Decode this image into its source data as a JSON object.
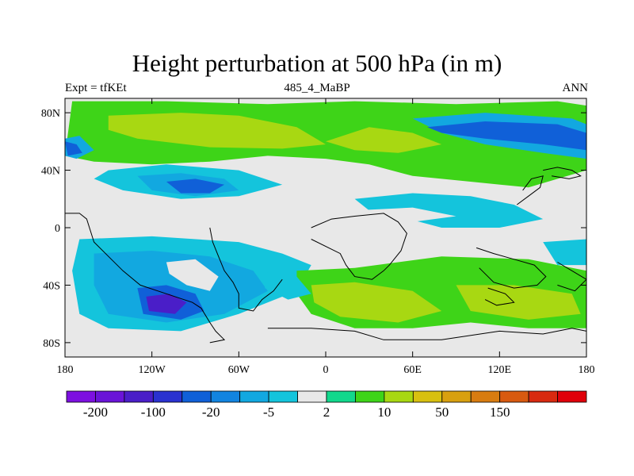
{
  "title": "Height perturbation at 500 hPa (in m)",
  "subtitle_left": "Expt = tfKEt",
  "subtitle_center": "485_4_MaBP",
  "subtitle_right": "ANN",
  "x_ticks": [
    {
      "value": -180,
      "label": "180"
    },
    {
      "value": -120,
      "label": "120W"
    },
    {
      "value": -60,
      "label": "60W"
    },
    {
      "value": 0,
      "label": "0"
    },
    {
      "value": 60,
      "label": "60E"
    },
    {
      "value": 120,
      "label": "120E"
    },
    {
      "value": 180,
      "label": "180"
    }
  ],
  "y_ticks": [
    {
      "value": 80,
      "label": "80N"
    },
    {
      "value": 40,
      "label": "40N"
    },
    {
      "value": 0,
      "label": "0"
    },
    {
      "value": -40,
      "label": "40S"
    },
    {
      "value": -80,
      "label": "80S"
    }
  ],
  "axis_range": {
    "lon": [
      -180,
      180
    ],
    "lat": [
      -90,
      90
    ]
  },
  "colorbar": {
    "colors": [
      "#7d10e0",
      "#6a14d8",
      "#4a1ec8",
      "#2a32d0",
      "#1060d8",
      "#1284e0",
      "#12a8e0",
      "#14c4dc",
      "#e8e8e8",
      "#12d88c",
      "#3ed418",
      "#a8d812",
      "#d8c010",
      "#d8a010",
      "#d87c10",
      "#d85a10",
      "#d82a10",
      "#e0000a"
    ],
    "labels": [
      "-200",
      "-100",
      "-20",
      "-5",
      "2",
      "10",
      "50",
      "150"
    ]
  },
  "field_regions": [
    {
      "level": "pos_low",
      "points": [
        [
          -175,
          88
        ],
        [
          -110,
          88
        ],
        [
          -40,
          86
        ],
        [
          20,
          88
        ],
        [
          90,
          86
        ],
        [
          160,
          88
        ],
        [
          180,
          85
        ],
        [
          180,
          40
        ],
        [
          140,
          28
        ],
        [
          100,
          32
        ],
        [
          60,
          36
        ],
        [
          30,
          44
        ],
        [
          0,
          48
        ],
        [
          -40,
          50
        ],
        [
          -80,
          46
        ],
        [
          -120,
          44
        ],
        [
          -160,
          46
        ],
        [
          -180,
          50
        ]
      ]
    },
    {
      "level": "pos_mid",
      "points": [
        [
          -150,
          78
        ],
        [
          -100,
          80
        ],
        [
          -60,
          78
        ],
        [
          -20,
          70
        ],
        [
          0,
          58
        ],
        [
          -30,
          55
        ],
        [
          -80,
          56
        ],
        [
          -130,
          62
        ],
        [
          -150,
          68
        ]
      ]
    },
    {
      "level": "pos_mid",
      "points": [
        [
          0,
          60
        ],
        [
          30,
          70
        ],
        [
          60,
          66
        ],
        [
          80,
          58
        ],
        [
          50,
          52
        ],
        [
          20,
          54
        ]
      ]
    },
    {
      "level": "neg_mid",
      "points": [
        [
          -180,
          62
        ],
        [
          -170,
          64
        ],
        [
          -160,
          54
        ],
        [
          -172,
          48
        ],
        [
          -180,
          50
        ]
      ]
    },
    {
      "level": "neg_high",
      "points": [
        [
          -180,
          60
        ],
        [
          -172,
          58
        ],
        [
          -168,
          52
        ],
        [
          -178,
          50
        ]
      ]
    },
    {
      "level": "neg_mid",
      "points": [
        [
          60,
          76
        ],
        [
          110,
          80
        ],
        [
          170,
          76
        ],
        [
          180,
          72
        ],
        [
          180,
          48
        ],
        [
          150,
          52
        ],
        [
          110,
          58
        ],
        [
          80,
          66
        ]
      ]
    },
    {
      "level": "neg_high",
      "points": [
        [
          70,
          70
        ],
        [
          110,
          74
        ],
        [
          160,
          72
        ],
        [
          180,
          66
        ],
        [
          180,
          54
        ],
        [
          150,
          58
        ],
        [
          110,
          62
        ],
        [
          80,
          66
        ]
      ]
    },
    {
      "level": "neg_low",
      "points": [
        [
          -150,
          40
        ],
        [
          -110,
          44
        ],
        [
          -60,
          40
        ],
        [
          -30,
          30
        ],
        [
          -60,
          22
        ],
        [
          -100,
          20
        ],
        [
          -140,
          26
        ],
        [
          -160,
          34
        ]
      ]
    },
    {
      "level": "neg_mid",
      "points": [
        [
          -130,
          36
        ],
        [
          -100,
          38
        ],
        [
          -70,
          34
        ],
        [
          -60,
          26
        ],
        [
          -90,
          22
        ],
        [
          -120,
          26
        ]
      ]
    },
    {
      "level": "neg_high",
      "points": [
        [
          -110,
          32
        ],
        [
          -90,
          34
        ],
        [
          -70,
          30
        ],
        [
          -80,
          24
        ],
        [
          -100,
          24
        ]
      ]
    },
    {
      "level": "neg_low",
      "points": [
        [
          20,
          20
        ],
        [
          60,
          24
        ],
        [
          100,
          22
        ],
        [
          130,
          16
        ],
        [
          150,
          6
        ],
        [
          120,
          0
        ],
        [
          80,
          0
        ],
        [
          50,
          8
        ],
        [
          30,
          12
        ]
      ]
    },
    {
      "level": "neg_low",
      "points": [
        [
          -170,
          -8
        ],
        [
          -120,
          -6
        ],
        [
          -60,
          -10
        ],
        [
          -30,
          -18
        ],
        [
          -10,
          -26
        ],
        [
          -20,
          -44
        ],
        [
          -60,
          -60
        ],
        [
          -100,
          -72
        ],
        [
          -150,
          -70
        ],
        [
          -170,
          -60
        ],
        [
          -175,
          -30
        ]
      ]
    },
    {
      "level": "neg_mid",
      "points": [
        [
          -160,
          -18
        ],
        [
          -120,
          -16
        ],
        [
          -80,
          -20
        ],
        [
          -50,
          -30
        ],
        [
          -40,
          -44
        ],
        [
          -70,
          -60
        ],
        [
          -110,
          -66
        ],
        [
          -150,
          -60
        ],
        [
          -160,
          -40
        ]
      ]
    },
    {
      "level": "neg_high",
      "points": [
        [
          -130,
          -42
        ],
        [
          -110,
          -40
        ],
        [
          -90,
          -46
        ],
        [
          -84,
          -58
        ],
        [
          -100,
          -64
        ],
        [
          -126,
          -60
        ]
      ]
    },
    {
      "level": "neg_xhigh",
      "points": [
        [
          -124,
          -48
        ],
        [
          -108,
          -46
        ],
        [
          -96,
          -52
        ],
        [
          -104,
          -60
        ],
        [
          -122,
          -58
        ]
      ]
    },
    {
      "level": "pos_low",
      "points": [
        [
          -20,
          -30
        ],
        [
          20,
          -28
        ],
        [
          80,
          -20
        ],
        [
          140,
          -22
        ],
        [
          180,
          -30
        ],
        [
          180,
          -70
        ],
        [
          140,
          -70
        ],
        [
          100,
          -66
        ],
        [
          60,
          -70
        ],
        [
          20,
          -70
        ],
        [
          -10,
          -60
        ],
        [
          -20,
          -46
        ]
      ]
    },
    {
      "level": "pos_mid",
      "points": [
        [
          -10,
          -40
        ],
        [
          20,
          -38
        ],
        [
          60,
          -44
        ],
        [
          80,
          -58
        ],
        [
          50,
          -66
        ],
        [
          10,
          -62
        ],
        [
          -8,
          -52
        ]
      ]
    },
    {
      "level": "pos_mid",
      "points": [
        [
          90,
          -40
        ],
        [
          130,
          -40
        ],
        [
          170,
          -46
        ],
        [
          176,
          -60
        ],
        [
          140,
          -64
        ],
        [
          100,
          -58
        ]
      ]
    },
    {
      "level": "neg_low",
      "points": [
        [
          -40,
          -30
        ],
        [
          -20,
          -34
        ],
        [
          -10,
          -46
        ],
        [
          -26,
          -50
        ],
        [
          -42,
          -42
        ]
      ]
    },
    {
      "level": "neg_low",
      "points": [
        [
          150,
          -10
        ],
        [
          180,
          -8
        ],
        [
          180,
          -26
        ],
        [
          160,
          -26
        ]
      ]
    },
    {
      "level": "white",
      "points": [
        [
          -110,
          -24
        ],
        [
          -90,
          -22
        ],
        [
          -74,
          -34
        ],
        [
          -80,
          -44
        ],
        [
          -96,
          -40
        ],
        [
          -108,
          -32
        ]
      ]
    },
    {
      "level": "white",
      "points": [
        [
          -40,
          -8
        ],
        [
          20,
          -4
        ],
        [
          60,
          4
        ],
        [
          90,
          8
        ],
        [
          60,
          14
        ],
        [
          20,
          12
        ],
        [
          -20,
          10
        ],
        [
          -50,
          6
        ]
      ]
    }
  ],
  "coastlines": [
    {
      "points": [
        [
          -180,
          10
        ],
        [
          -170,
          10
        ],
        [
          -165,
          6
        ],
        [
          -160,
          -10
        ],
        [
          -150,
          -20
        ],
        [
          -140,
          -30
        ],
        [
          -128,
          -40
        ],
        [
          -110,
          -46
        ],
        [
          -92,
          -52
        ],
        [
          -86,
          -56
        ],
        [
          -80,
          -66
        ],
        [
          -76,
          -72
        ],
        [
          -70,
          -78
        ],
        [
          -80,
          -80
        ]
      ]
    },
    {
      "points": [
        [
          -80,
          0
        ],
        [
          -78,
          -10
        ],
        [
          -74,
          -20
        ],
        [
          -70,
          -30
        ],
        [
          -64,
          -38
        ],
        [
          -60,
          -46
        ],
        [
          -60,
          -56
        ],
        [
          -50,
          -58
        ],
        [
          -44,
          -50
        ],
        [
          -36,
          -44
        ],
        [
          -30,
          -36
        ]
      ]
    },
    {
      "points": [
        [
          -40,
          -70
        ],
        [
          -10,
          -70
        ],
        [
          20,
          -72
        ],
        [
          40,
          -78
        ],
        [
          80,
          -78
        ],
        [
          120,
          -72
        ],
        [
          150,
          -74
        ],
        [
          170,
          -70
        ],
        [
          180,
          -72
        ]
      ]
    },
    {
      "points": [
        [
          -10,
          0
        ],
        [
          4,
          6
        ],
        [
          20,
          8
        ],
        [
          40,
          10
        ],
        [
          50,
          4
        ],
        [
          56,
          -4
        ],
        [
          52,
          -16
        ],
        [
          44,
          -26
        ],
        [
          40,
          -30
        ],
        [
          32,
          -36
        ],
        [
          20,
          -34
        ],
        [
          14,
          -26
        ],
        [
          10,
          -18
        ],
        [
          -10,
          -8
        ]
      ]
    },
    {
      "points": [
        [
          104,
          -14
        ],
        [
          116,
          -18
        ],
        [
          130,
          -22
        ],
        [
          144,
          -26
        ],
        [
          152,
          -34
        ],
        [
          146,
          -40
        ],
        [
          130,
          -42
        ],
        [
          116,
          -38
        ],
        [
          106,
          -28
        ]
      ]
    },
    {
      "points": [
        [
          112,
          -42
        ],
        [
          124,
          -46
        ],
        [
          130,
          -52
        ],
        [
          118,
          -54
        ],
        [
          110,
          -50
        ]
      ]
    },
    {
      "points": [
        [
          160,
          -24
        ],
        [
          170,
          -30
        ],
        [
          180,
          -36
        ],
        [
          172,
          -44
        ],
        [
          160,
          -40
        ]
      ]
    },
    {
      "points": [
        [
          150,
          40
        ],
        [
          160,
          42
        ],
        [
          170,
          40
        ],
        [
          176,
          36
        ],
        [
          168,
          34
        ],
        [
          156,
          36
        ]
      ]
    },
    {
      "points": [
        [
          132,
          16
        ],
        [
          140,
          22
        ],
        [
          148,
          28
        ],
        [
          150,
          36
        ],
        [
          142,
          34
        ],
        [
          136,
          26
        ]
      ]
    }
  ]
}
